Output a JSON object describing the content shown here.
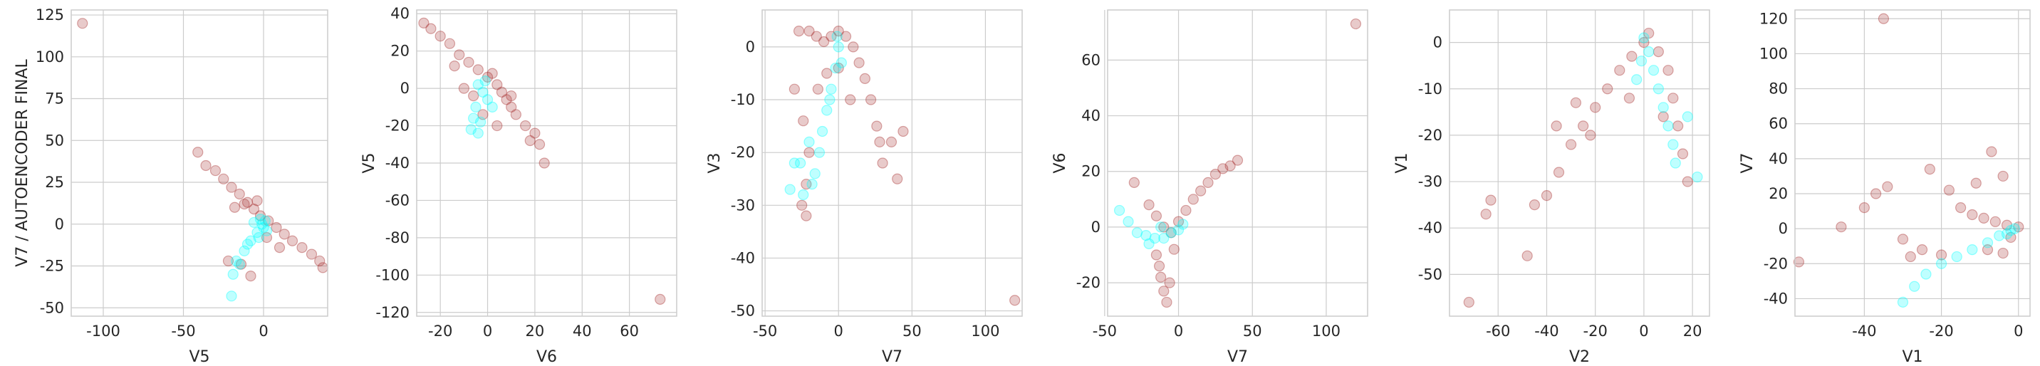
{
  "chart_data": [
    {
      "type": "scatter",
      "xlabel": "V5",
      "ylabel": "V7 / AUTOENCODER FINAL",
      "xlim": [
        -120,
        40
      ],
      "ylim": [
        -55,
        128
      ],
      "xticks": [
        -100,
        -50,
        0
      ],
      "yticks": [
        -50,
        -25,
        0,
        25,
        50,
        75,
        100,
        125
      ],
      "grid": true,
      "series": [
        {
          "color": "#a52a2a",
          "points": [
            [
              -113,
              120
            ],
            [
              -41,
              43
            ],
            [
              -36,
              35
            ],
            [
              -30,
              32
            ],
            [
              -25,
              27
            ],
            [
              -20,
              22
            ],
            [
              -15,
              18
            ],
            [
              -10,
              13
            ],
            [
              -6,
              9
            ],
            [
              -2,
              5
            ],
            [
              3,
              2
            ],
            [
              8,
              -2
            ],
            [
              13,
              -6
            ],
            [
              18,
              -10
            ],
            [
              24,
              -14
            ],
            [
              30,
              -18
            ],
            [
              35,
              -22
            ],
            [
              37,
              -26
            ],
            [
              -22,
              -22
            ],
            [
              -14,
              -24
            ],
            [
              -8,
              -31
            ],
            [
              10,
              -14
            ],
            [
              -18,
              10
            ],
            [
              -12,
              12
            ],
            [
              -4,
              14
            ],
            [
              2,
              -8
            ]
          ]
        },
        {
          "color": "#00ffff",
          "points": [
            [
              -2,
              3
            ],
            [
              -1,
              0
            ],
            [
              0,
              -2
            ],
            [
              -4,
              -5
            ],
            [
              -8,
              -10
            ],
            [
              -12,
              -16
            ],
            [
              -17,
              -22
            ],
            [
              -19,
              -30
            ],
            [
              -20,
              -43
            ],
            [
              -3,
              -8
            ],
            [
              2,
              -4
            ],
            [
              -6,
              1
            ],
            [
              -10,
              -12
            ],
            [
              -15,
              -24
            ],
            [
              1,
              2
            ]
          ]
        }
      ]
    },
    {
      "type": "scatter",
      "xlabel": "V6",
      "ylabel": "V5",
      "xlim": [
        -30,
        80
      ],
      "ylim": [
        -122,
        42
      ],
      "xticks": [
        -20,
        0,
        20,
        40,
        60
      ],
      "yticks": [
        -120,
        -100,
        -80,
        -60,
        -40,
        -20,
        0,
        20,
        40
      ],
      "grid": true,
      "series": [
        {
          "color": "#a52a2a",
          "points": [
            [
              -27,
              35
            ],
            [
              -24,
              32
            ],
            [
              -20,
              28
            ],
            [
              -16,
              24
            ],
            [
              -12,
              18
            ],
            [
              -8,
              14
            ],
            [
              -4,
              10
            ],
            [
              0,
              6
            ],
            [
              4,
              2
            ],
            [
              6,
              -2
            ],
            [
              8,
              -6
            ],
            [
              10,
              -10
            ],
            [
              12,
              -14
            ],
            [
              16,
              -20
            ],
            [
              20,
              -24
            ],
            [
              22,
              -30
            ],
            [
              24,
              -40
            ],
            [
              73,
              -113
            ],
            [
              -10,
              0
            ],
            [
              -6,
              -4
            ],
            [
              -2,
              -14
            ],
            [
              4,
              -20
            ],
            [
              2,
              8
            ],
            [
              -14,
              12
            ],
            [
              10,
              -4
            ],
            [
              18,
              -28
            ]
          ]
        },
        {
          "color": "#00ffff",
          "points": [
            [
              -4,
              2
            ],
            [
              -2,
              -2
            ],
            [
              0,
              -6
            ],
            [
              -5,
              -10
            ],
            [
              -6,
              -16
            ],
            [
              -7,
              -22
            ],
            [
              -3,
              -18
            ],
            [
              2,
              -10
            ],
            [
              -1,
              4
            ],
            [
              -4,
              -24
            ]
          ]
        }
      ]
    },
    {
      "type": "scatter",
      "xlabel": "V7",
      "ylabel": "V3",
      "xlim": [
        -52,
        125
      ],
      "ylim": [
        -51,
        7
      ],
      "xticks": [
        -50,
        0,
        50,
        100
      ],
      "yticks": [
        -50,
        -40,
        -30,
        -20,
        -10,
        0
      ],
      "grid": true,
      "series": [
        {
          "color": "#a52a2a",
          "points": [
            [
              -27,
              3
            ],
            [
              -20,
              3
            ],
            [
              -15,
              2
            ],
            [
              -10,
              1
            ],
            [
              -5,
              2
            ],
            [
              0,
              3
            ],
            [
              5,
              2
            ],
            [
              10,
              0
            ],
            [
              14,
              -3
            ],
            [
              18,
              -6
            ],
            [
              22,
              -10
            ],
            [
              26,
              -15
            ],
            [
              28,
              -18
            ],
            [
              30,
              -22
            ],
            [
              36,
              -18
            ],
            [
              44,
              -16
            ],
            [
              40,
              -25
            ],
            [
              -30,
              -8
            ],
            [
              -24,
              -14
            ],
            [
              -20,
              -20
            ],
            [
              -22,
              -26
            ],
            [
              -25,
              -30
            ],
            [
              -22,
              -32
            ],
            [
              -14,
              -8
            ],
            [
              -8,
              -5
            ],
            [
              0,
              -4
            ],
            [
              8,
              -10
            ],
            [
              120,
              -48
            ]
          ]
        },
        {
          "color": "#00ffff",
          "points": [
            [
              -1,
              2
            ],
            [
              0,
              0
            ],
            [
              -2,
              -4
            ],
            [
              -5,
              -8
            ],
            [
              -8,
              -12
            ],
            [
              -11,
              -16
            ],
            [
              -13,
              -20
            ],
            [
              -16,
              -24
            ],
            [
              -18,
              -26
            ],
            [
              -24,
              -28
            ],
            [
              -33,
              -27
            ],
            [
              -30,
              -22
            ],
            [
              -26,
              -22
            ],
            [
              -20,
              -18
            ],
            [
              -6,
              -10
            ],
            [
              2,
              -3
            ]
          ]
        }
      ]
    },
    {
      "type": "scatter",
      "xlabel": "V7",
      "ylabel": "V6",
      "xlim": [
        -48,
        128
      ],
      "ylim": [
        -32,
        78
      ],
      "xticks": [
        -50,
        0,
        50,
        100
      ],
      "yticks": [
        -20,
        0,
        20,
        40,
        60
      ],
      "grid": true,
      "series": [
        {
          "color": "#a52a2a",
          "points": [
            [
              -30,
              16
            ],
            [
              -20,
              8
            ],
            [
              -15,
              4
            ],
            [
              -10,
              0
            ],
            [
              -5,
              -2
            ],
            [
              0,
              2
            ],
            [
              5,
              6
            ],
            [
              10,
              10
            ],
            [
              15,
              13
            ],
            [
              20,
              16
            ],
            [
              25,
              19
            ],
            [
              30,
              21
            ],
            [
              35,
              22
            ],
            [
              40,
              24
            ],
            [
              -15,
              -10
            ],
            [
              -13,
              -14
            ],
            [
              -12,
              -18
            ],
            [
              -10,
              -23
            ],
            [
              -8,
              -27
            ],
            [
              -6,
              -20
            ],
            [
              -3,
              -8
            ],
            [
              120,
              73
            ]
          ]
        },
        {
          "color": "#00ffff",
          "points": [
            [
              -40,
              6
            ],
            [
              -34,
              2
            ],
            [
              -28,
              -2
            ],
            [
              -22,
              -3
            ],
            [
              -16,
              -4
            ],
            [
              -10,
              -4
            ],
            [
              -5,
              -2
            ],
            [
              0,
              -1
            ],
            [
              3,
              1
            ],
            [
              -20,
              -6
            ],
            [
              -12,
              0
            ]
          ]
        }
      ]
    },
    {
      "type": "scatter",
      "xlabel": "V2",
      "ylabel": "V1",
      "xlim": [
        -80,
        27
      ],
      "ylim": [
        -59,
        7
      ],
      "xticks": [
        -60,
        -40,
        -20,
        0,
        20
      ],
      "yticks": [
        -50,
        -40,
        -30,
        -20,
        -10,
        0
      ],
      "grid": true,
      "series": [
        {
          "color": "#a52a2a",
          "points": [
            [
              -72,
              -56
            ],
            [
              -65,
              -37
            ],
            [
              -63,
              -34
            ],
            [
              -48,
              -46
            ],
            [
              -45,
              -35
            ],
            [
              -40,
              -33
            ],
            [
              -35,
              -28
            ],
            [
              -30,
              -22
            ],
            [
              -25,
              -18
            ],
            [
              -20,
              -14
            ],
            [
              -15,
              -10
            ],
            [
              -10,
              -6
            ],
            [
              -5,
              -3
            ],
            [
              0,
              0
            ],
            [
              2,
              2
            ],
            [
              6,
              -2
            ],
            [
              10,
              -6
            ],
            [
              12,
              -12
            ],
            [
              14,
              -18
            ],
            [
              16,
              -24
            ],
            [
              18,
              -30
            ],
            [
              -28,
              -13
            ],
            [
              -22,
              -20
            ],
            [
              -36,
              -18
            ],
            [
              -6,
              -12
            ],
            [
              8,
              -16
            ]
          ]
        },
        {
          "color": "#00ffff",
          "points": [
            [
              0,
              1
            ],
            [
              2,
              -2
            ],
            [
              4,
              -6
            ],
            [
              6,
              -10
            ],
            [
              8,
              -14
            ],
            [
              10,
              -18
            ],
            [
              12,
              -22
            ],
            [
              13,
              -26
            ],
            [
              22,
              -29
            ],
            [
              18,
              -16
            ],
            [
              -1,
              -4
            ],
            [
              -3,
              -8
            ]
          ]
        }
      ]
    },
    {
      "type": "scatter",
      "xlabel": "V1",
      "ylabel": "V7",
      "xlim": [
        -58,
        3
      ],
      "ylim": [
        -50,
        125
      ],
      "xticks": [
        -40,
        -20,
        0
      ],
      "yticks": [
        -40,
        -20,
        0,
        20,
        40,
        60,
        80,
        100,
        120
      ],
      "grid": true,
      "series": [
        {
          "color": "#a52a2a",
          "points": [
            [
              -35,
              120
            ],
            [
              -57,
              -19
            ],
            [
              -46,
              1
            ],
            [
              -40,
              12
            ],
            [
              -37,
              20
            ],
            [
              -34,
              24
            ],
            [
              -30,
              -6
            ],
            [
              -28,
              -16
            ],
            [
              -25,
              -12
            ],
            [
              -23,
              34
            ],
            [
              -18,
              22
            ],
            [
              -15,
              12
            ],
            [
              -12,
              8
            ],
            [
              -9,
              6
            ],
            [
              -6,
              4
            ],
            [
              -3,
              2
            ],
            [
              0,
              1
            ],
            [
              -7,
              44
            ],
            [
              -4,
              30
            ],
            [
              -11,
              26
            ],
            [
              -20,
              -15
            ],
            [
              -8,
              -12
            ],
            [
              -4,
              -14
            ],
            [
              -2,
              -5
            ]
          ]
        },
        {
          "color": "#00ffff",
          "points": [
            [
              -1,
              0
            ],
            [
              -2,
              -1
            ],
            [
              -5,
              -4
            ],
            [
              -8,
              -8
            ],
            [
              -12,
              -12
            ],
            [
              -16,
              -16
            ],
            [
              -20,
              -20
            ],
            [
              -24,
              -26
            ],
            [
              -27,
              -33
            ],
            [
              -30,
              -42
            ],
            [
              -3,
              -3
            ]
          ]
        }
      ]
    }
  ]
}
